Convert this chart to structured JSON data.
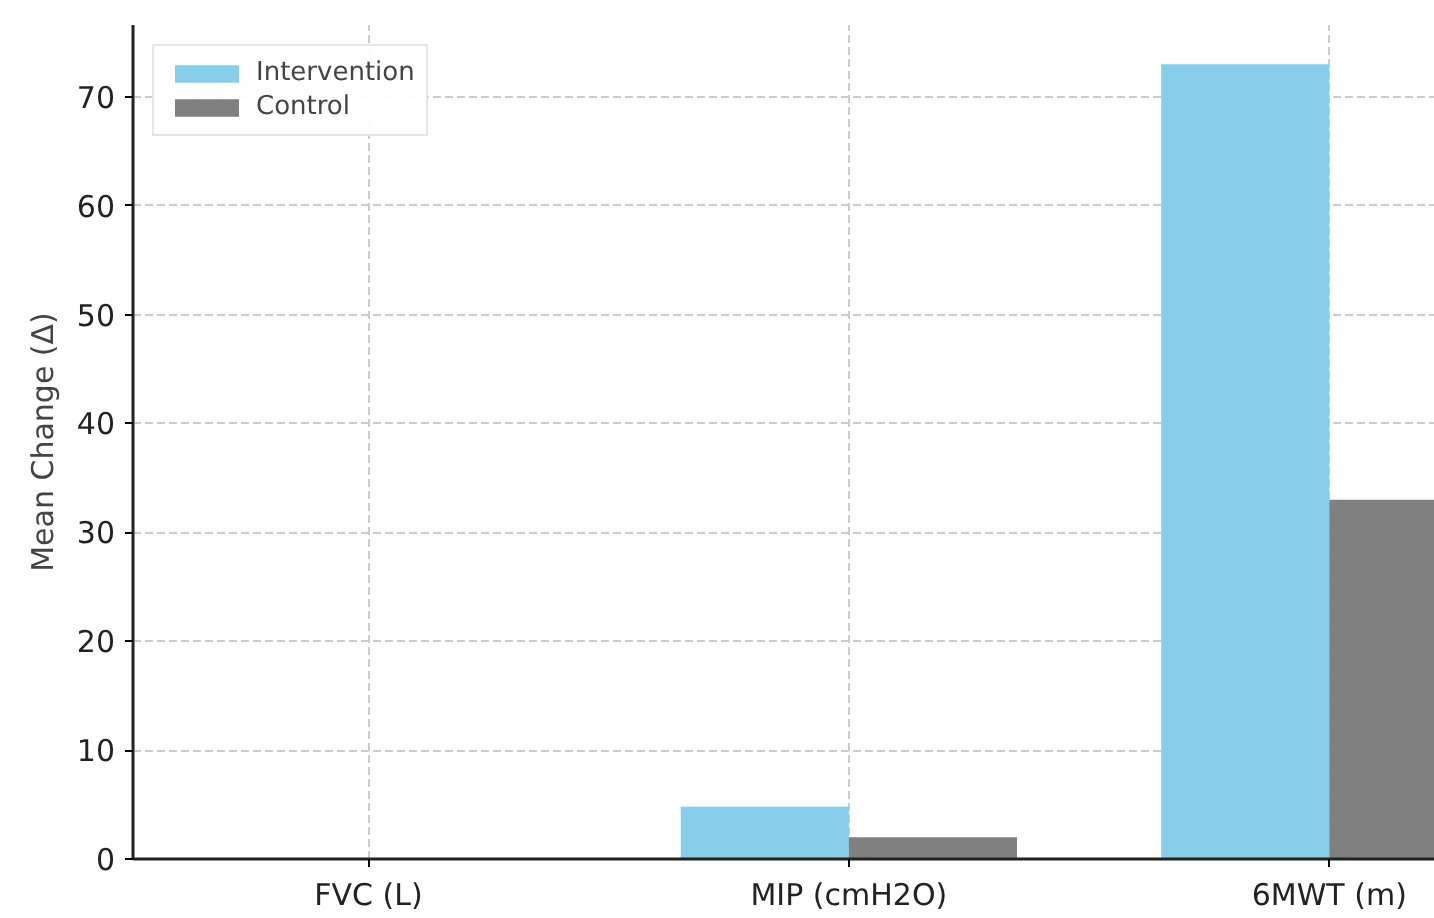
{
  "chart_data": {
    "type": "bar",
    "categories": [
      "FVC (L)",
      "MIP (cmH2O)",
      "6MWT (m)"
    ],
    "ylabel": "Mean Change (Δ)",
    "series": [
      {
        "name": "Intervention",
        "color": "#87ceeb",
        "values": [
          0,
          4.8,
          73
        ]
      },
      {
        "name": "Control",
        "color": "#808080",
        "values": [
          0,
          2,
          33
        ]
      }
    ],
    "ylim": [
      0,
      76.6
    ],
    "yticks": [
      0,
      10,
      20,
      30,
      40,
      50,
      60,
      70
    ],
    "grid": true,
    "legend": "top left"
  }
}
